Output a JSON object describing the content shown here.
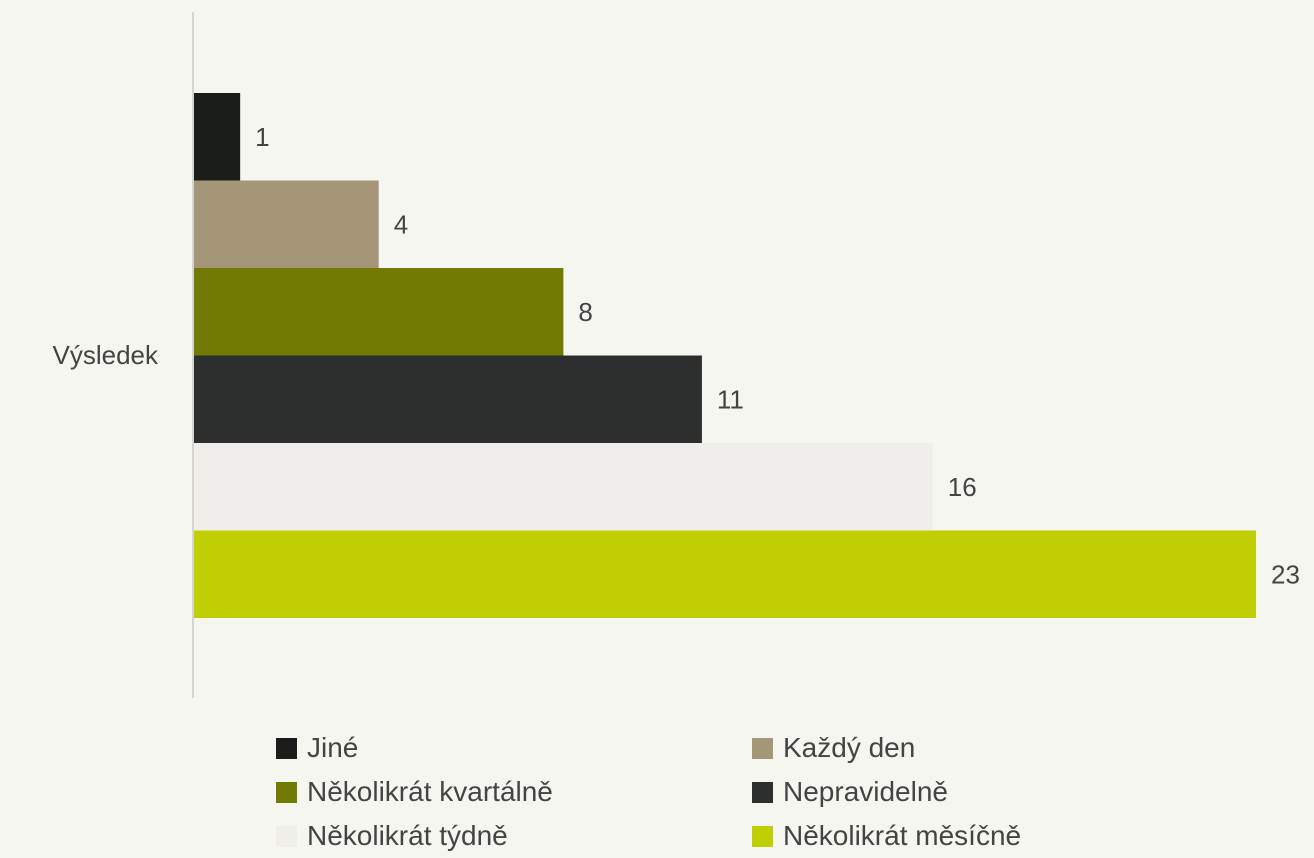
{
  "chart_data": {
    "type": "bar",
    "orientation": "horizontal",
    "categories": [
      "Výsledek"
    ],
    "series": [
      {
        "name": "Jiné",
        "values": [
          1
        ],
        "color": "#1b1d1b"
      },
      {
        "name": "Každý den",
        "values": [
          4
        ],
        "color": "#a59677"
      },
      {
        "name": "Několikrát kvartálně",
        "values": [
          8
        ],
        "color": "#717a03"
      },
      {
        "name": "Nepravidelně",
        "values": [
          11
        ],
        "color": "#2d2f2e"
      },
      {
        "name": "Několikrát týdně",
        "values": [
          16
        ],
        "color": "#efeeea"
      },
      {
        "name": "Několikrát měsíčně",
        "values": [
          23
        ],
        "color": "#bfcf03"
      }
    ],
    "xlim": [
      0,
      23
    ],
    "grid": false,
    "legend_position": "bottom",
    "data_labels": true
  },
  "colors": {
    "background": "#f6f6f1",
    "axis": "#d6d6d0"
  }
}
